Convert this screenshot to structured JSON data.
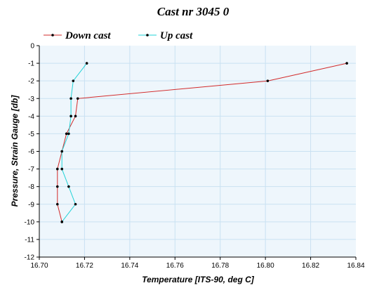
{
  "chart_data": {
    "type": "line",
    "title": "Cast nr 3045 0",
    "xlabel": "Temperature [ITS-90, deg C]",
    "ylabel": "Pressure, Strain Gauge [db]",
    "xlim": [
      16.7,
      16.84
    ],
    "ylim": [
      -12,
      0
    ],
    "x_ticks": [
      "16.70",
      "16.72",
      "16.74",
      "16.76",
      "16.78",
      "16.80",
      "16.82",
      "16.84"
    ],
    "y_ticks": [
      "0",
      "-1",
      "-2",
      "-3",
      "-4",
      "-5",
      "-6",
      "-7",
      "-8",
      "-9",
      "-10",
      "-11",
      "-12"
    ],
    "grid": true,
    "legend_placement": "top",
    "plot_background": "#eef6fc",
    "grid_color": "#c9e1f2",
    "series": [
      {
        "name": "Down cast",
        "color": "#d22b2b",
        "points": [
          {
            "x": 16.836,
            "y": -1
          },
          {
            "x": 16.801,
            "y": -2
          },
          {
            "x": 16.717,
            "y": -3
          },
          {
            "x": 16.716,
            "y": -4
          },
          {
            "x": 16.712,
            "y": -5
          },
          {
            "x": 16.71,
            "y": -6
          },
          {
            "x": 16.708,
            "y": -7
          },
          {
            "x": 16.708,
            "y": -8
          },
          {
            "x": 16.708,
            "y": -9
          },
          {
            "x": 16.71,
            "y": -10
          }
        ]
      },
      {
        "name": "Up cast",
        "color": "#22d3d8",
        "points": [
          {
            "x": 16.71,
            "y": -10
          },
          {
            "x": 16.716,
            "y": -9
          },
          {
            "x": 16.713,
            "y": -8
          },
          {
            "x": 16.71,
            "y": -7
          },
          {
            "x": 16.71,
            "y": -6
          },
          {
            "x": 16.713,
            "y": -5
          },
          {
            "x": 16.714,
            "y": -4
          },
          {
            "x": 16.714,
            "y": -3
          },
          {
            "x": 16.715,
            "y": -2
          },
          {
            "x": 16.721,
            "y": -1
          }
        ]
      }
    ]
  }
}
